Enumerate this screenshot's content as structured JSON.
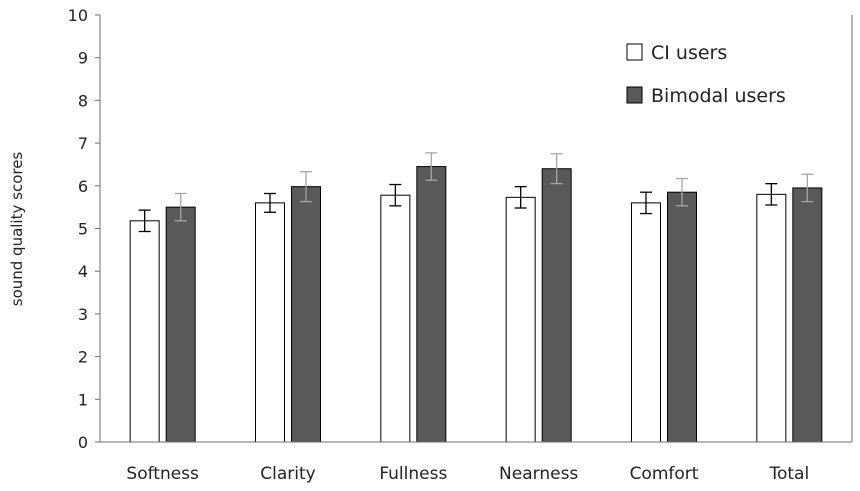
{
  "chart_data": {
    "type": "bar",
    "title": "",
    "xlabel": "",
    "ylabel": "sound quality scores",
    "ylim": [
      0,
      10
    ],
    "yticks": [
      0,
      1,
      2,
      3,
      4,
      5,
      6,
      7,
      8,
      9,
      10
    ],
    "grid": false,
    "legend_position": "top-right",
    "categories": [
      "Softness",
      "Clarity",
      "Fullness",
      "Nearness",
      "Comfort",
      "Total"
    ],
    "series": [
      {
        "name": "CI users",
        "fill": "#ffffff",
        "values": [
          5.18,
          5.6,
          5.78,
          5.73,
          5.6,
          5.8
        ],
        "error": [
          0.25,
          0.22,
          0.25,
          0.25,
          0.25,
          0.25
        ],
        "error_color": "#000000"
      },
      {
        "name": "Bimodal users",
        "fill": "#595959",
        "values": [
          5.5,
          5.98,
          6.45,
          6.4,
          5.85,
          5.95
        ],
        "error": [
          0.32,
          0.35,
          0.32,
          0.35,
          0.32,
          0.32
        ],
        "error_color": "#a6a6a6"
      }
    ]
  }
}
